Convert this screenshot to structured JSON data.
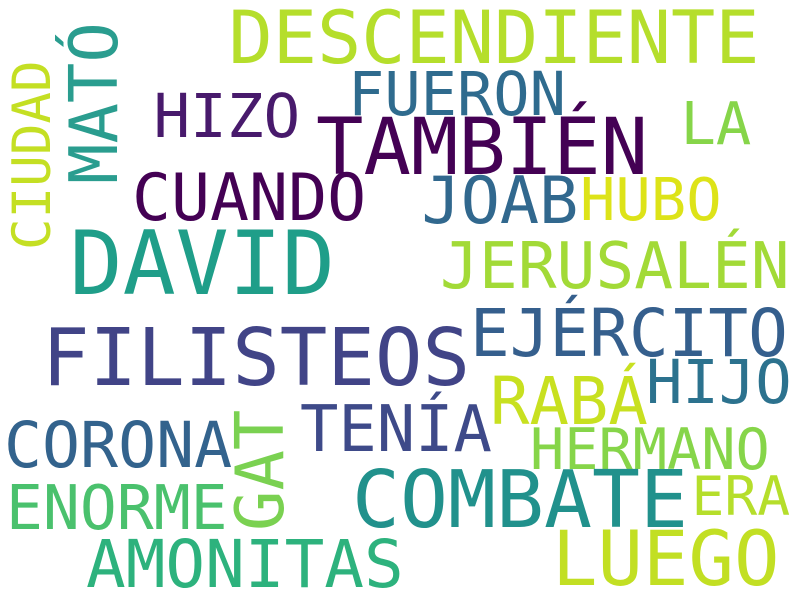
{
  "cloud": {
    "words": [
      {
        "id": "descendiente",
        "text": "DESCENDIENTE",
        "color": "#b5de2b"
      },
      {
        "id": "mato",
        "text": "MATÓ",
        "color": "#2a9d8f"
      },
      {
        "id": "fueron",
        "text": "FUERON",
        "color": "#2f6b8e"
      },
      {
        "id": "hizo",
        "text": "HIZO",
        "color": "#481a6c"
      },
      {
        "id": "tambien",
        "text": "TAMBIÉN",
        "color": "#440154"
      },
      {
        "id": "la",
        "text": "LA",
        "color": "#86d549"
      },
      {
        "id": "ciudad",
        "text": "CIUDAD",
        "color": "#c4df23"
      },
      {
        "id": "cuando",
        "text": "CUANDO",
        "color": "#440154"
      },
      {
        "id": "joab",
        "text": "JOAB",
        "color": "#31688e"
      },
      {
        "id": "hubo",
        "text": "HUBO",
        "color": "#dde318"
      },
      {
        "id": "david",
        "text": "DAVID",
        "color": "#1f9e89"
      },
      {
        "id": "jerusalen",
        "text": "JERUSALÉN",
        "color": "#a2da37"
      },
      {
        "id": "filisteos",
        "text": "FILISTEOS",
        "color": "#414487"
      },
      {
        "id": "ejercito",
        "text": "EJÉRCITO",
        "color": "#355f8d"
      },
      {
        "id": "raba",
        "text": "RABÁ",
        "color": "#c8e020"
      },
      {
        "id": "hijo",
        "text": "HIJO",
        "color": "#2c728e"
      },
      {
        "id": "corona",
        "text": "CORONA",
        "color": "#33638d"
      },
      {
        "id": "gat",
        "text": "GAT",
        "color": "#7ad151"
      },
      {
        "id": "tenia",
        "text": "TENÍA",
        "color": "#3e4a89"
      },
      {
        "id": "hermano",
        "text": "HERMANO",
        "color": "#86d549"
      },
      {
        "id": "combate",
        "text": "COMBATE",
        "color": "#21918c"
      },
      {
        "id": "enorme",
        "text": "ENORME",
        "color": "#4ac16d"
      },
      {
        "id": "era",
        "text": "ERA",
        "color": "#b5de2b"
      },
      {
        "id": "amonitas",
        "text": "AMONITAS",
        "color": "#2db27d"
      },
      {
        "id": "luego",
        "text": "LUEGO",
        "color": "#c2df23"
      }
    ]
  }
}
